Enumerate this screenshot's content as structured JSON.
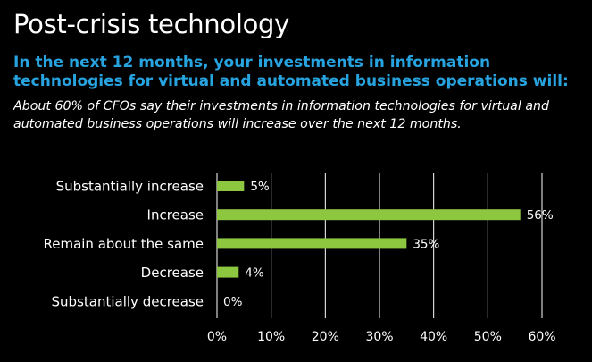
{
  "header": {
    "title": "Post-crisis technology",
    "subtitle": "In the next 12 months, your investments in information technologies for virtual and automated business operations will:",
    "note": "About 60% of CFOs say their investments in information technologies for virtual and automated business operations will increase over the next 12 months."
  },
  "colors": {
    "background": "#000000",
    "subtitle": "#27a3e0",
    "bar": "#8dc63f",
    "grid": "#ffffff",
    "text": "#ffffff"
  },
  "chart_data": {
    "type": "bar",
    "orientation": "horizontal",
    "categories": [
      "Substantially increase",
      "Increase",
      "Remain about the same",
      "Decrease",
      "Substantially decrease"
    ],
    "values": [
      5,
      56,
      35,
      4,
      0
    ],
    "value_labels": [
      "5%",
      "56%",
      "35%",
      "4%",
      "0%"
    ],
    "xlim": [
      0,
      60
    ],
    "xticks": [
      "0%",
      "10%",
      "20%",
      "30%",
      "40%",
      "50%",
      "60%"
    ],
    "grid": true
  }
}
